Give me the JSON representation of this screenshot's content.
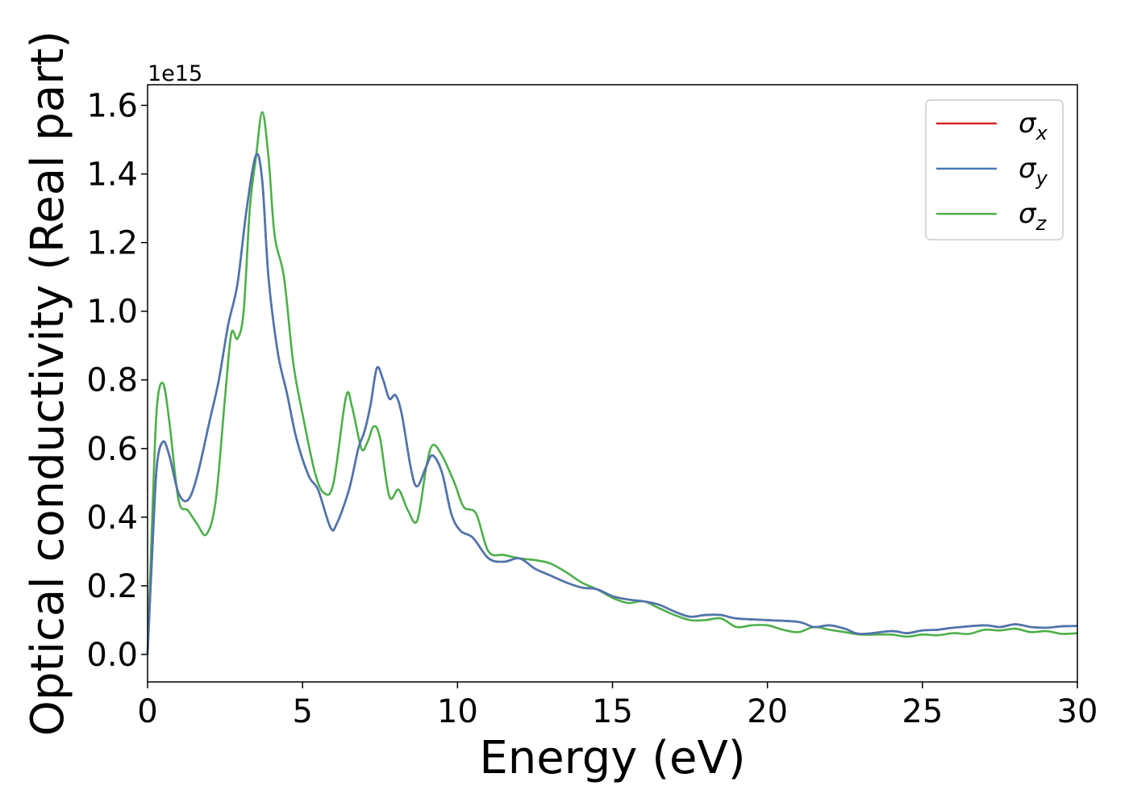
{
  "chart_data": {
    "type": "line",
    "xlabel": "Energy (eV)",
    "ylabel": "Optical conductivity (Real part)",
    "y_offset_label": "1e15",
    "xlim": [
      0,
      30
    ],
    "ylim": [
      -0.08,
      1.66
    ],
    "x_ticks": [
      0,
      5,
      10,
      15,
      20,
      25,
      30
    ],
    "x_tick_labels": [
      "0",
      "5",
      "10",
      "15",
      "20",
      "25",
      "30"
    ],
    "y_ticks": [
      0.0,
      0.2,
      0.4,
      0.6,
      0.8,
      1.0,
      1.2,
      1.4,
      1.6
    ],
    "y_tick_labels": [
      "0.0",
      "0.2",
      "0.4",
      "0.6",
      "0.8",
      "1.0",
      "1.2",
      "1.4",
      "1.6"
    ],
    "grid": false,
    "legend_position": "top-right",
    "series": [
      {
        "name": "σx",
        "label_base": "σ",
        "label_sub": "x",
        "color": "#d62728",
        "points": [
          [
            0,
            0.0
          ],
          [
            0.15,
            0.3
          ],
          [
            0.3,
            0.55
          ],
          [
            0.5,
            0.62
          ],
          [
            0.7,
            0.58
          ],
          [
            1.0,
            0.47
          ],
          [
            1.3,
            0.45
          ],
          [
            1.6,
            0.52
          ],
          [
            2.0,
            0.68
          ],
          [
            2.3,
            0.8
          ],
          [
            2.6,
            0.96
          ],
          [
            2.9,
            1.08
          ],
          [
            3.2,
            1.3
          ],
          [
            3.5,
            1.455
          ],
          [
            3.7,
            1.38
          ],
          [
            3.9,
            1.1
          ],
          [
            4.2,
            0.88
          ],
          [
            4.5,
            0.76
          ],
          [
            4.8,
            0.63
          ],
          [
            5.2,
            0.52
          ],
          [
            5.5,
            0.48
          ],
          [
            5.9,
            0.37
          ],
          [
            6.1,
            0.38
          ],
          [
            6.5,
            0.48
          ],
          [
            6.8,
            0.6
          ],
          [
            7.0,
            0.65
          ],
          [
            7.2,
            0.73
          ],
          [
            7.4,
            0.835
          ],
          [
            7.6,
            0.8
          ],
          [
            7.8,
            0.745
          ],
          [
            8.0,
            0.755
          ],
          [
            8.2,
            0.7
          ],
          [
            8.5,
            0.54
          ],
          [
            8.7,
            0.49
          ],
          [
            9.0,
            0.55
          ],
          [
            9.2,
            0.58
          ],
          [
            9.5,
            0.53
          ],
          [
            9.8,
            0.41
          ],
          [
            10.1,
            0.36
          ],
          [
            10.5,
            0.34
          ],
          [
            11.0,
            0.28
          ],
          [
            11.5,
            0.27
          ],
          [
            12.0,
            0.28
          ],
          [
            12.5,
            0.25
          ],
          [
            13.0,
            0.23
          ],
          [
            13.5,
            0.21
          ],
          [
            14.0,
            0.195
          ],
          [
            14.5,
            0.19
          ],
          [
            15.0,
            0.17
          ],
          [
            15.5,
            0.16
          ],
          [
            16.0,
            0.155
          ],
          [
            16.5,
            0.145
          ],
          [
            17.0,
            0.125
          ],
          [
            17.5,
            0.11
          ],
          [
            18.0,
            0.115
          ],
          [
            18.5,
            0.115
          ],
          [
            19.0,
            0.105
          ],
          [
            20.0,
            0.1
          ],
          [
            21.0,
            0.095
          ],
          [
            21.5,
            0.08
          ],
          [
            22.0,
            0.085
          ],
          [
            22.5,
            0.075
          ],
          [
            23.0,
            0.06
          ],
          [
            24.0,
            0.068
          ],
          [
            24.5,
            0.062
          ],
          [
            25.0,
            0.07
          ],
          [
            25.5,
            0.072
          ],
          [
            26.0,
            0.078
          ],
          [
            27.0,
            0.085
          ],
          [
            27.5,
            0.08
          ],
          [
            28.0,
            0.088
          ],
          [
            28.5,
            0.08
          ],
          [
            29.0,
            0.078
          ],
          [
            29.5,
            0.082
          ],
          [
            30.0,
            0.083
          ]
        ]
      },
      {
        "name": "σy",
        "label_base": "σ",
        "label_sub": "y",
        "color": "#4a77b0",
        "points": [
          [
            0,
            0.0
          ],
          [
            0.15,
            0.3
          ],
          [
            0.3,
            0.55
          ],
          [
            0.5,
            0.62
          ],
          [
            0.7,
            0.58
          ],
          [
            1.0,
            0.47
          ],
          [
            1.3,
            0.45
          ],
          [
            1.6,
            0.52
          ],
          [
            2.0,
            0.68
          ],
          [
            2.3,
            0.8
          ],
          [
            2.6,
            0.96
          ],
          [
            2.9,
            1.08
          ],
          [
            3.2,
            1.3
          ],
          [
            3.5,
            1.455
          ],
          [
            3.7,
            1.38
          ],
          [
            3.9,
            1.1
          ],
          [
            4.2,
            0.88
          ],
          [
            4.5,
            0.76
          ],
          [
            4.8,
            0.63
          ],
          [
            5.2,
            0.52
          ],
          [
            5.5,
            0.48
          ],
          [
            5.9,
            0.37
          ],
          [
            6.1,
            0.38
          ],
          [
            6.5,
            0.48
          ],
          [
            6.8,
            0.6
          ],
          [
            7.0,
            0.65
          ],
          [
            7.2,
            0.73
          ],
          [
            7.4,
            0.835
          ],
          [
            7.6,
            0.8
          ],
          [
            7.8,
            0.745
          ],
          [
            8.0,
            0.755
          ],
          [
            8.2,
            0.7
          ],
          [
            8.5,
            0.54
          ],
          [
            8.7,
            0.49
          ],
          [
            9.0,
            0.55
          ],
          [
            9.2,
            0.58
          ],
          [
            9.5,
            0.53
          ],
          [
            9.8,
            0.41
          ],
          [
            10.1,
            0.36
          ],
          [
            10.5,
            0.34
          ],
          [
            11.0,
            0.28
          ],
          [
            11.5,
            0.27
          ],
          [
            12.0,
            0.28
          ],
          [
            12.5,
            0.25
          ],
          [
            13.0,
            0.23
          ],
          [
            13.5,
            0.21
          ],
          [
            14.0,
            0.195
          ],
          [
            14.5,
            0.19
          ],
          [
            15.0,
            0.17
          ],
          [
            15.5,
            0.16
          ],
          [
            16.0,
            0.155
          ],
          [
            16.5,
            0.145
          ],
          [
            17.0,
            0.125
          ],
          [
            17.5,
            0.11
          ],
          [
            18.0,
            0.115
          ],
          [
            18.5,
            0.115
          ],
          [
            19.0,
            0.105
          ],
          [
            20.0,
            0.1
          ],
          [
            21.0,
            0.095
          ],
          [
            21.5,
            0.08
          ],
          [
            22.0,
            0.085
          ],
          [
            22.5,
            0.075
          ],
          [
            23.0,
            0.06
          ],
          [
            24.0,
            0.068
          ],
          [
            24.5,
            0.062
          ],
          [
            25.0,
            0.07
          ],
          [
            25.5,
            0.072
          ],
          [
            26.0,
            0.078
          ],
          [
            27.0,
            0.085
          ],
          [
            27.5,
            0.08
          ],
          [
            28.0,
            0.088
          ],
          [
            28.5,
            0.08
          ],
          [
            29.0,
            0.078
          ],
          [
            29.5,
            0.082
          ],
          [
            30.0,
            0.083
          ]
        ]
      },
      {
        "name": "σz",
        "label_base": "σ",
        "label_sub": "z",
        "color": "#4daf4a",
        "points": [
          [
            0,
            0.0
          ],
          [
            0.15,
            0.4
          ],
          [
            0.3,
            0.72
          ],
          [
            0.5,
            0.79
          ],
          [
            0.7,
            0.68
          ],
          [
            1.0,
            0.45
          ],
          [
            1.3,
            0.42
          ],
          [
            1.6,
            0.38
          ],
          [
            1.9,
            0.35
          ],
          [
            2.2,
            0.45
          ],
          [
            2.5,
            0.75
          ],
          [
            2.7,
            0.935
          ],
          [
            2.9,
            0.92
          ],
          [
            3.1,
            1.0
          ],
          [
            3.3,
            1.3
          ],
          [
            3.5,
            1.45
          ],
          [
            3.7,
            1.58
          ],
          [
            3.9,
            1.45
          ],
          [
            4.1,
            1.22
          ],
          [
            4.4,
            1.1
          ],
          [
            4.7,
            0.85
          ],
          [
            5.0,
            0.7
          ],
          [
            5.4,
            0.53
          ],
          [
            5.7,
            0.47
          ],
          [
            6.0,
            0.5
          ],
          [
            6.4,
            0.75
          ],
          [
            6.6,
            0.72
          ],
          [
            6.9,
            0.6
          ],
          [
            7.1,
            0.62
          ],
          [
            7.3,
            0.665
          ],
          [
            7.5,
            0.63
          ],
          [
            7.8,
            0.46
          ],
          [
            8.1,
            0.48
          ],
          [
            8.4,
            0.42
          ],
          [
            8.7,
            0.39
          ],
          [
            9.0,
            0.55
          ],
          [
            9.2,
            0.61
          ],
          [
            9.5,
            0.58
          ],
          [
            9.9,
            0.5
          ],
          [
            10.2,
            0.43
          ],
          [
            10.6,
            0.41
          ],
          [
            11.0,
            0.3
          ],
          [
            11.5,
            0.29
          ],
          [
            12.0,
            0.28
          ],
          [
            12.5,
            0.275
          ],
          [
            13.0,
            0.265
          ],
          [
            13.5,
            0.24
          ],
          [
            14.0,
            0.21
          ],
          [
            14.5,
            0.19
          ],
          [
            15.0,
            0.165
          ],
          [
            15.5,
            0.15
          ],
          [
            16.0,
            0.155
          ],
          [
            16.5,
            0.135
          ],
          [
            17.0,
            0.115
          ],
          [
            17.5,
            0.1
          ],
          [
            18.0,
            0.1
          ],
          [
            18.5,
            0.105
          ],
          [
            19.0,
            0.08
          ],
          [
            19.5,
            0.085
          ],
          [
            20.0,
            0.085
          ],
          [
            20.5,
            0.072
          ],
          [
            21.0,
            0.065
          ],
          [
            21.5,
            0.08
          ],
          [
            22.0,
            0.072
          ],
          [
            22.5,
            0.065
          ],
          [
            23.0,
            0.058
          ],
          [
            23.5,
            0.058
          ],
          [
            24.0,
            0.058
          ],
          [
            24.5,
            0.052
          ],
          [
            25.0,
            0.058
          ],
          [
            25.5,
            0.056
          ],
          [
            26.0,
            0.062
          ],
          [
            26.5,
            0.06
          ],
          [
            27.0,
            0.072
          ],
          [
            27.5,
            0.07
          ],
          [
            28.0,
            0.075
          ],
          [
            28.5,
            0.065
          ],
          [
            29.0,
            0.068
          ],
          [
            29.5,
            0.06
          ],
          [
            30.0,
            0.062
          ]
        ]
      }
    ]
  }
}
